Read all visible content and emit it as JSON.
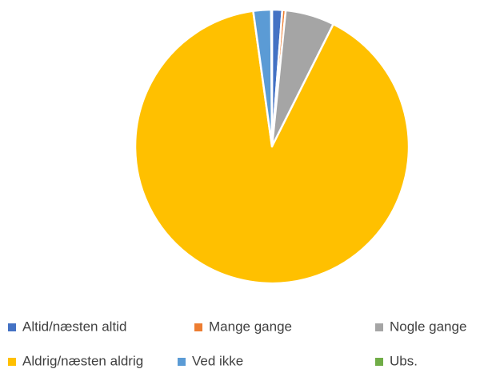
{
  "chart_data": {
    "type": "pie",
    "categories": [
      "Altid/næsten altid",
      "Mange gange",
      "Nogle gange",
      "Aldrig/næsten aldrig",
      "Ved ikke",
      "Ubs."
    ],
    "values": [
      1.2,
      0.4,
      5.8,
      90.4,
      2.1,
      0.1
    ],
    "colors": [
      "#4472c4",
      "#ed7d31",
      "#a5a5a5",
      "#ffc000",
      "#5b9bd5",
      "#70ad47"
    ],
    "legend": "bottom"
  }
}
